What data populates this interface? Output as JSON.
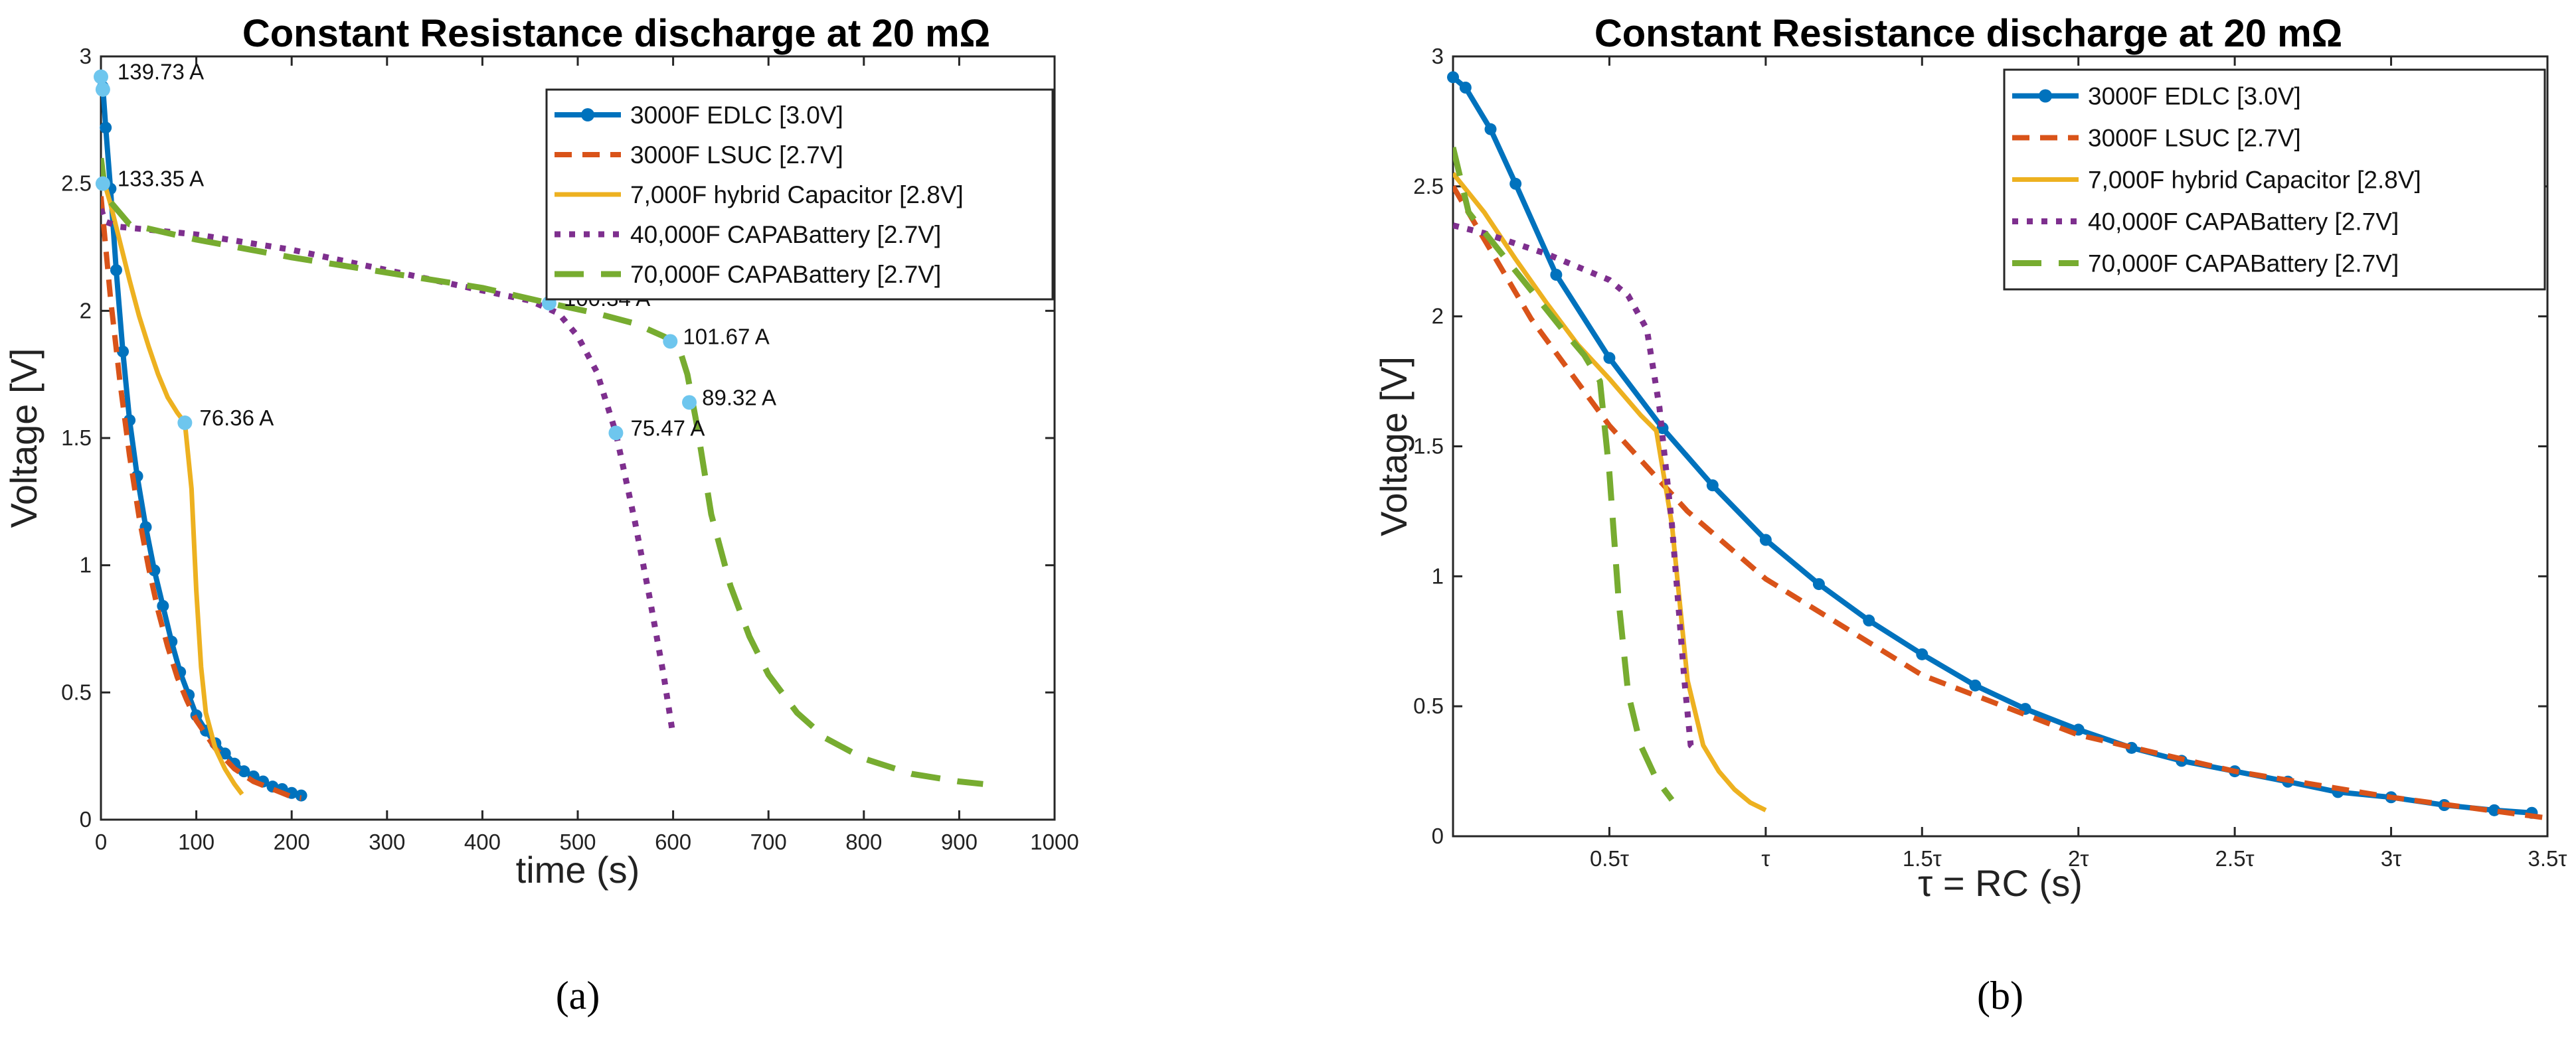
{
  "colors": {
    "edlc": "#0072BD",
    "lsuc": "#D95319",
    "hybrid": "#EDB120",
    "capa40": "#7E2F8E",
    "capa70": "#77AC30",
    "marker_light": "#6EC6EE"
  },
  "chart_data": [
    {
      "id": "a",
      "type": "line",
      "title": "Constant Resistance discharge at 20 mΩ",
      "xlabel": "time (s)",
      "ylabel": "Voltage [V]",
      "xlim": [
        0,
        1000
      ],
      "ylim": [
        0,
        3
      ],
      "xticks": [
        0,
        100,
        200,
        300,
        400,
        500,
        600,
        700,
        800,
        900,
        1000
      ],
      "xtick_labels": [
        "0",
        "100",
        "200",
        "300",
        "400",
        "500",
        "600",
        "700",
        "800",
        "900",
        "1000"
      ],
      "yticks": [
        0,
        0.5,
        1,
        1.5,
        2,
        2.5,
        3
      ],
      "ytick_labels": [
        "0",
        "0.5",
        "1",
        "1.5",
        "2",
        "2.5",
        "3"
      ],
      "grid": false,
      "legend": "top-right",
      "caption": "(a)",
      "series": [
        {
          "name": "3000F EDLC [3.0V]",
          "color_key": "edlc",
          "style": "solid-markers",
          "x": [
            0,
            2,
            5,
            10,
            16,
            23,
            30,
            38,
            47,
            56,
            65,
            74,
            83,
            92,
            100,
            110,
            120,
            130,
            140,
            150,
            160,
            170,
            180,
            190,
            200,
            210
          ],
          "y": [
            2.92,
            2.88,
            2.72,
            2.48,
            2.16,
            1.84,
            1.57,
            1.35,
            1.15,
            0.98,
            0.84,
            0.7,
            0.58,
            0.49,
            0.41,
            0.35,
            0.3,
            0.26,
            0.22,
            0.19,
            0.17,
            0.15,
            0.13,
            0.12,
            0.105,
            0.095
          ]
        },
        {
          "name": "3000F LSUC [2.7V]",
          "color_key": "lsuc",
          "style": "dashed",
          "x": [
            0,
            10,
            20,
            30,
            40,
            50,
            60,
            70,
            80,
            90,
            100,
            120,
            140,
            160,
            180,
            200,
            210
          ],
          "y": [
            2.45,
            2.05,
            1.72,
            1.43,
            1.19,
            0.99,
            0.82,
            0.68,
            0.56,
            0.47,
            0.39,
            0.28,
            0.2,
            0.15,
            0.12,
            0.09,
            0.085
          ]
        },
        {
          "name": "7,000F hybrid Capacitor [2.8V]",
          "color_key": "hybrid",
          "style": "solid",
          "x": [
            0,
            10,
            20,
            30,
            40,
            50,
            60,
            70,
            80,
            88,
            95,
            100,
            105,
            110,
            120,
            130,
            140,
            148
          ],
          "y": [
            2.55,
            2.42,
            2.27,
            2.12,
            1.98,
            1.86,
            1.75,
            1.66,
            1.6,
            1.56,
            1.3,
            0.9,
            0.6,
            0.42,
            0.28,
            0.2,
            0.14,
            0.1
          ]
        },
        {
          "name": "40,000F CAPABattery [2.7V]",
          "color_key": "capa40",
          "style": "dotted",
          "x": [
            0,
            5,
            20,
            100,
            200,
            300,
            400,
            450,
            480,
            500,
            520,
            540,
            560,
            575,
            590,
            600
          ],
          "y": [
            2.4,
            2.35,
            2.33,
            2.3,
            2.24,
            2.16,
            2.08,
            2.04,
            1.99,
            1.9,
            1.76,
            1.52,
            1.17,
            0.88,
            0.57,
            0.33
          ]
        },
        {
          "name": "70,000F CAPABattery [2.7V]",
          "color_key": "capa70",
          "style": "dashed-long",
          "x": [
            0,
            5,
            30,
            100,
            200,
            300,
            400,
            470,
            520,
            560,
            590,
            605,
            615,
            625,
            640,
            660,
            680,
            700,
            730,
            760,
            800,
            850,
            900,
            925
          ],
          "y": [
            2.6,
            2.45,
            2.34,
            2.28,
            2.21,
            2.15,
            2.09,
            2.03,
            1.99,
            1.95,
            1.9,
            1.87,
            1.75,
            1.55,
            1.2,
            0.92,
            0.72,
            0.57,
            0.42,
            0.32,
            0.24,
            0.18,
            0.15,
            0.14
          ]
        }
      ],
      "annotations": [
        {
          "text": "139.73 A",
          "x": 2,
          "y": 2.92
        },
        {
          "text": "133.35 A",
          "x": 2,
          "y": 2.5
        },
        {
          "text": "76.36 A",
          "x": 88,
          "y": 1.56
        },
        {
          "text": "100.34 A",
          "x": 470,
          "y": 2.03
        },
        {
          "text": "75.47 A",
          "x": 540,
          "y": 1.52
        },
        {
          "text": "101.67 A",
          "x": 595,
          "y": 1.88
        },
        {
          "text": "89.32 A",
          "x": 615,
          "y": 1.64
        }
      ],
      "highlight_points": [
        {
          "x": 0,
          "y": 2.92
        },
        {
          "x": 2,
          "y": 2.87
        },
        {
          "x": 2,
          "y": 2.5
        },
        {
          "x": 88,
          "y": 1.56
        },
        {
          "x": 470,
          "y": 2.03
        },
        {
          "x": 540,
          "y": 1.52
        },
        {
          "x": 597,
          "y": 1.88
        },
        {
          "x": 617,
          "y": 1.64
        }
      ]
    },
    {
      "id": "b",
      "type": "line",
      "title": "Constant Resistance discharge at 20 mΩ",
      "xlabel": "τ = RC (s)",
      "ylabel": "Voltage [V]",
      "xlim": [
        0,
        3.5
      ],
      "ylim": [
        0,
        3
      ],
      "xticks": [
        0.5,
        1,
        1.5,
        2,
        2.5,
        3,
        3.5
      ],
      "xtick_labels": [
        "0.5τ",
        "τ",
        "1.5τ",
        "2τ",
        "2.5τ",
        "3τ",
        "3.5τ"
      ],
      "yticks": [
        0,
        0.5,
        1,
        1.5,
        2,
        2.5,
        3
      ],
      "ytick_labels": [
        "0",
        "0.5",
        "1",
        "1.5",
        "2",
        "2.5",
        "3"
      ],
      "grid": false,
      "legend": "top-right",
      "caption": "(b)",
      "series": [
        {
          "name": "3000F EDLC [3.0V]",
          "color_key": "edlc",
          "style": "solid-markers",
          "x": [
            0,
            0.04,
            0.12,
            0.2,
            0.33,
            0.5,
            0.67,
            0.83,
            1.0,
            1.17,
            1.33,
            1.5,
            1.67,
            1.83,
            2.0,
            2.17,
            2.33,
            2.5,
            2.67,
            2.83,
            3.0,
            3.17,
            3.33,
            3.45
          ],
          "y": [
            2.92,
            2.88,
            2.72,
            2.51,
            2.16,
            1.84,
            1.57,
            1.35,
            1.14,
            0.97,
            0.83,
            0.7,
            0.58,
            0.49,
            0.41,
            0.34,
            0.29,
            0.25,
            0.21,
            0.17,
            0.15,
            0.12,
            0.1,
            0.09
          ]
        },
        {
          "name": "3000F LSUC [2.7V]",
          "color_key": "lsuc",
          "style": "dashed",
          "x": [
            0,
            0.25,
            0.5,
            0.75,
            1.0,
            1.5,
            2.0,
            2.5,
            3.0,
            3.5
          ],
          "y": [
            2.5,
            1.99,
            1.58,
            1.25,
            0.99,
            0.62,
            0.39,
            0.25,
            0.15,
            0.07
          ]
        },
        {
          "name": "7,000F hybrid Capacitor [2.8V]",
          "color_key": "hybrid",
          "style": "solid",
          "x": [
            0,
            0.1,
            0.2,
            0.3,
            0.4,
            0.5,
            0.6,
            0.65,
            0.7,
            0.75,
            0.8,
            0.85,
            0.9,
            0.95,
            1.0
          ],
          "y": [
            2.55,
            2.4,
            2.22,
            2.05,
            1.89,
            1.76,
            1.62,
            1.56,
            1.2,
            0.6,
            0.35,
            0.25,
            0.18,
            0.13,
            0.1
          ]
        },
        {
          "name": "40,000F CAPABattery [2.7V]",
          "color_key": "capa40",
          "style": "dotted",
          "x": [
            0,
            0.1,
            0.2,
            0.3,
            0.4,
            0.5,
            0.56,
            0.62,
            0.66,
            0.7,
            0.74,
            0.76,
            0.77
          ],
          "y": [
            2.35,
            2.32,
            2.28,
            2.24,
            2.19,
            2.14,
            2.08,
            1.95,
            1.65,
            1.2,
            0.6,
            0.35,
            0.34
          ]
        },
        {
          "name": "70,000F CAPABattery [2.7V]",
          "color_key": "capa70",
          "style": "dashed-long",
          "x": [
            0,
            0.05,
            0.15,
            0.25,
            0.35,
            0.42,
            0.47,
            0.5,
            0.53,
            0.56,
            0.6,
            0.65,
            0.7
          ],
          "y": [
            2.65,
            2.4,
            2.25,
            2.1,
            1.95,
            1.85,
            1.75,
            1.4,
            0.9,
            0.55,
            0.35,
            0.22,
            0.14
          ]
        }
      ]
    }
  ]
}
